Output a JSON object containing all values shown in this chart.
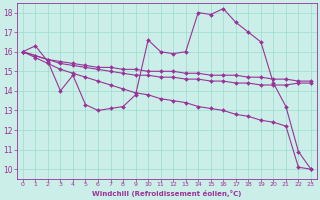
{
  "background_color": "#cceee8",
  "grid_color": "#99ddcc",
  "line_color": "#993399",
  "xlabel": "Windchill (Refroidissement éolien,°C)",
  "xlim": [
    -0.5,
    23.5
  ],
  "ylim": [
    9.5,
    18.5
  ],
  "yticks": [
    10,
    11,
    12,
    13,
    14,
    15,
    16,
    17,
    18
  ],
  "xticks": [
    0,
    1,
    2,
    3,
    4,
    5,
    6,
    7,
    8,
    9,
    10,
    11,
    12,
    13,
    14,
    15,
    16,
    17,
    18,
    19,
    20,
    21,
    22,
    23
  ],
  "s1_x": [
    0,
    1,
    2,
    3,
    4,
    5,
    6,
    7,
    8,
    9,
    10,
    11,
    12,
    13,
    14,
    15,
    16,
    17,
    18,
    19,
    20,
    21,
    22,
    23
  ],
  "s1_y": [
    16.0,
    16.3,
    15.5,
    14.0,
    14.8,
    13.3,
    13.0,
    13.1,
    13.2,
    13.8,
    16.6,
    16.0,
    15.9,
    16.0,
    18.0,
    17.9,
    18.2,
    17.5,
    17.0,
    16.5,
    14.4,
    13.2,
    10.9,
    10.0
  ],
  "s2_x": [
    0,
    1,
    2,
    3,
    4,
    5,
    6,
    7,
    8,
    9,
    10,
    11,
    12,
    13,
    14,
    15,
    16,
    17,
    18,
    19,
    20,
    21,
    22,
    23
  ],
  "s2_y": [
    16.0,
    15.8,
    15.6,
    15.5,
    15.4,
    15.3,
    15.2,
    15.2,
    15.1,
    15.1,
    15.0,
    15.0,
    15.0,
    14.9,
    14.9,
    14.8,
    14.8,
    14.8,
    14.7,
    14.7,
    14.6,
    14.6,
    14.5,
    14.5
  ],
  "s3_x": [
    0,
    1,
    2,
    3,
    4,
    5,
    6,
    7,
    8,
    9,
    10,
    11,
    12,
    13,
    14,
    15,
    16,
    17,
    18,
    19,
    20,
    21,
    22,
    23
  ],
  "s3_y": [
    16.0,
    15.8,
    15.6,
    15.4,
    15.3,
    15.2,
    15.1,
    15.0,
    14.9,
    14.8,
    14.8,
    14.7,
    14.7,
    14.6,
    14.6,
    14.5,
    14.5,
    14.4,
    14.4,
    14.3,
    14.3,
    14.3,
    14.4,
    14.4
  ],
  "s4_x": [
    0,
    1,
    2,
    3,
    4,
    5,
    6,
    7,
    8,
    9,
    10,
    11,
    12,
    13,
    14,
    15,
    16,
    17,
    18,
    19,
    20,
    21,
    22,
    23
  ],
  "s4_y": [
    16.0,
    15.7,
    15.4,
    15.1,
    14.9,
    14.7,
    14.5,
    14.3,
    14.1,
    13.9,
    13.8,
    13.6,
    13.5,
    13.4,
    13.2,
    13.1,
    13.0,
    12.8,
    12.7,
    12.5,
    12.4,
    12.2,
    10.1,
    10.0
  ]
}
